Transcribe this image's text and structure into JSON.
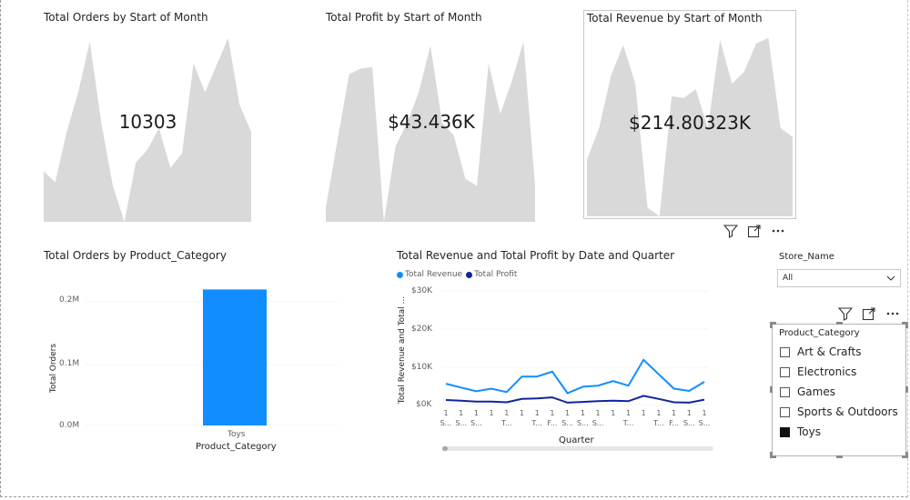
{
  "kpi_cards": [
    {
      "title": "Total Orders by Start of Month",
      "value": "10303"
    },
    {
      "title": "Total Profit by Start of Month",
      "value": "$43.436K"
    },
    {
      "title": "Total Revenue by Start of Month",
      "value": "$214.80323K"
    }
  ],
  "bar_chart": {
    "title": "Total Orders by Product_Category",
    "ylabel": "Total Orders",
    "xlabel": "Product_Category",
    "yticks": [
      "0.2M",
      "0.1M",
      "0.0M"
    ]
  },
  "line_chart": {
    "title": "Total Revenue and Total Profit by Date and Quarter",
    "ylabel": "Total Revenue and Total ...",
    "xlabel": "Quarter",
    "yticks": [
      "$30K",
      "$20K",
      "$10K",
      "$0K"
    ],
    "legend": [
      {
        "name": "Total Revenue",
        "color": "#118dff"
      },
      {
        "name": "Total Profit",
        "color": "#12239e"
      }
    ],
    "xtick_top": [
      "1",
      "1",
      "1",
      "1",
      "1",
      "1",
      "1",
      "1",
      "1",
      "1",
      "1",
      "1",
      "1",
      "1",
      "1",
      "1",
      "1",
      "1"
    ],
    "xtick_bottom": [
      "S...",
      "S...",
      "S...",
      "",
      "T...",
      "",
      "T...",
      "F...",
      "S...",
      "S...",
      "S...",
      "",
      "T...",
      "",
      "T...",
      "F...",
      "S...",
      "S..."
    ]
  },
  "store_slicer": {
    "title": "Store_Name",
    "selected": "All"
  },
  "category_slicer": {
    "title": "Product_Category",
    "items": [
      {
        "label": "Art & Crafts",
        "checked": false
      },
      {
        "label": "Electronics",
        "checked": false
      },
      {
        "label": "Games",
        "checked": false
      },
      {
        "label": "Sports & Outdoors",
        "checked": false
      },
      {
        "label": "Toys",
        "checked": true
      }
    ]
  },
  "chart_data": [
    {
      "type": "area",
      "title": "Total Orders by Start of Month",
      "values": [
        0.28,
        0.22,
        0.5,
        0.72,
        1.0,
        0.55,
        0.2,
        0.0,
        0.33,
        0.4,
        0.52,
        0.3,
        0.38,
        0.88,
        0.72,
        0.87,
        1.02,
        0.65,
        0.5
      ],
      "annotation": "10303"
    },
    {
      "type": "area",
      "title": "Total Profit by Start of Month",
      "values": [
        0.08,
        0.45,
        0.82,
        0.85,
        0.86,
        0.0,
        0.42,
        0.55,
        0.72,
        0.98,
        0.55,
        0.48,
        0.24,
        0.2,
        0.88,
        0.6,
        0.78,
        1.0,
        0.2
      ],
      "annotation": "$43.436K"
    },
    {
      "type": "area",
      "title": "Total Revenue by Start of Month",
      "values": [
        0.32,
        0.5,
        0.8,
        0.97,
        0.75,
        0.05,
        0.0,
        0.68,
        0.67,
        0.72,
        0.5,
        1.0,
        0.75,
        0.82,
        0.98,
        1.01,
        0.5,
        0.45
      ],
      "annotation": "$214.80323K"
    },
    {
      "type": "bar",
      "title": "Total Orders by Product_Category",
      "categories": [
        "Toys"
      ],
      "values": [
        220000
      ],
      "ylabel": "Total Orders",
      "xlabel": "Product_Category",
      "ylim": [
        0,
        230000
      ]
    },
    {
      "type": "line",
      "title": "Total Revenue and Total Profit by Date and Quarter",
      "xlabel": "Quarter",
      "ylabel": "Total Revenue and Total ...",
      "ylim": [
        0,
        30000
      ],
      "series": [
        {
          "name": "Total Revenue",
          "color": "#118dff",
          "values": [
            5500,
            4500,
            3500,
            4200,
            3300,
            7400,
            7400,
            8700,
            3000,
            4700,
            5000,
            6200,
            5000,
            11800,
            8000,
            4200,
            3600,
            6000
          ]
        },
        {
          "name": "Total Profit",
          "color": "#12239e",
          "values": [
            1200,
            1000,
            800,
            800,
            600,
            1500,
            1600,
            1900,
            500,
            700,
            900,
            1000,
            900,
            2300,
            1500,
            600,
            500,
            1300
          ]
        }
      ]
    }
  ]
}
